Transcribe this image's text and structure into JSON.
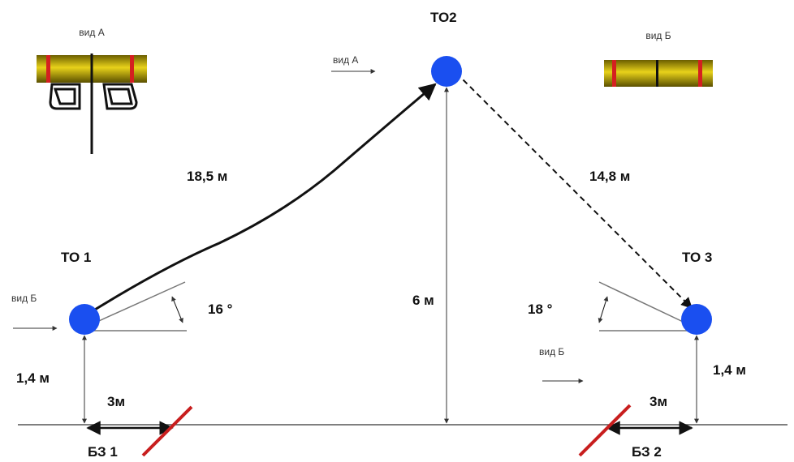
{
  "points": {
    "to1": "ТО 1",
    "to2": "ТО2",
    "to3": "ТО 3"
  },
  "distances": {
    "slope_left": "18,5 м",
    "slope_right": "14,8 м",
    "height_center": "6 м",
    "height_left": "1,4 м",
    "height_right": "1,4 м",
    "ground_left": "3м",
    "ground_right": "3м"
  },
  "angles": {
    "left": "16 °",
    "right": "18 °"
  },
  "zones": {
    "bz1": "БЗ 1",
    "bz2": "БЗ 2"
  },
  "views": {
    "inset_a_title": "вид А",
    "inset_b_title": "вид Б",
    "arrow_a": "вид А",
    "arrow_b_left": "вид Б",
    "arrow_b_right": "вид Б"
  },
  "colors": {
    "node": "#1a4ff0",
    "rope_body": "#c8b400",
    "rope_stripe": "#d42020",
    "zone_slash": "#c81e1e"
  }
}
